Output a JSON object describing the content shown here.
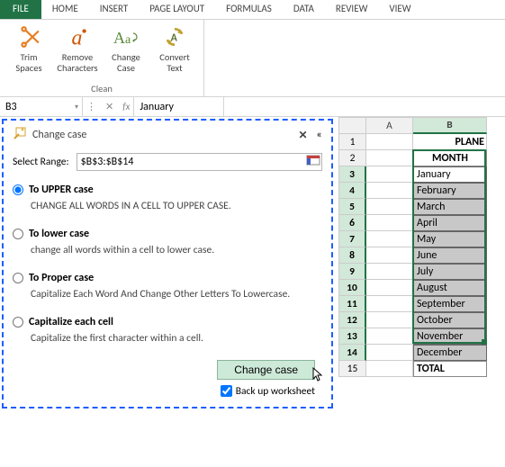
{
  "ribbon": {
    "tabs": {
      "file": "FILE",
      "home": "HOME",
      "insert": "INSERT",
      "page_layout": "PAGE LAYOUT",
      "formulas": "FORMULAS",
      "data": "DATA",
      "review": "REVIEW",
      "view": "VIEW"
    },
    "clean_group": {
      "title": "Clean",
      "trim": "Trim\nSpaces",
      "remove": "Remove\nCharacters",
      "change": "Change\nCase",
      "convert": "Convert\nText"
    }
  },
  "formula_bar": {
    "name_box": "B3",
    "x": "⋮",
    "check": "✕",
    "fx": "fx",
    "value": "January"
  },
  "pane": {
    "title": "Change case",
    "close": "✕",
    "collapse": "«",
    "select_label": "Select Range:",
    "range": "$B$3:$B$14",
    "opts": {
      "upper": {
        "label": "To UPPER case",
        "desc": "CHANGE ALL WORDS IN A CELL TO UPPER CASE.",
        "checked": true
      },
      "lower": {
        "label": "To lower case",
        "desc": "change all words within a cell to lower case.",
        "checked": false
      },
      "proper": {
        "label": "To Proper case",
        "desc": "Capitalize Each Word And Change Other Letters To Lowercase.",
        "checked": false
      },
      "cap": {
        "label": "Capitalize each cell",
        "desc": "Capitalize the first character within a cell.",
        "checked": false
      }
    },
    "button": "Change case",
    "backup": "Back up worksheet"
  },
  "sheet": {
    "cols": {
      "a": "A",
      "b": "B"
    },
    "b1": "PLANE",
    "b2": "MONTH",
    "months": [
      "January",
      "February",
      "March",
      "April",
      "May",
      "June",
      "July",
      "August",
      "September",
      "October",
      "November",
      "December"
    ],
    "total": "TOTAL",
    "row_labels": [
      "1",
      "2",
      "3",
      "4",
      "5",
      "6",
      "7",
      "8",
      "9",
      "10",
      "11",
      "12",
      "13",
      "14",
      "15"
    ]
  }
}
